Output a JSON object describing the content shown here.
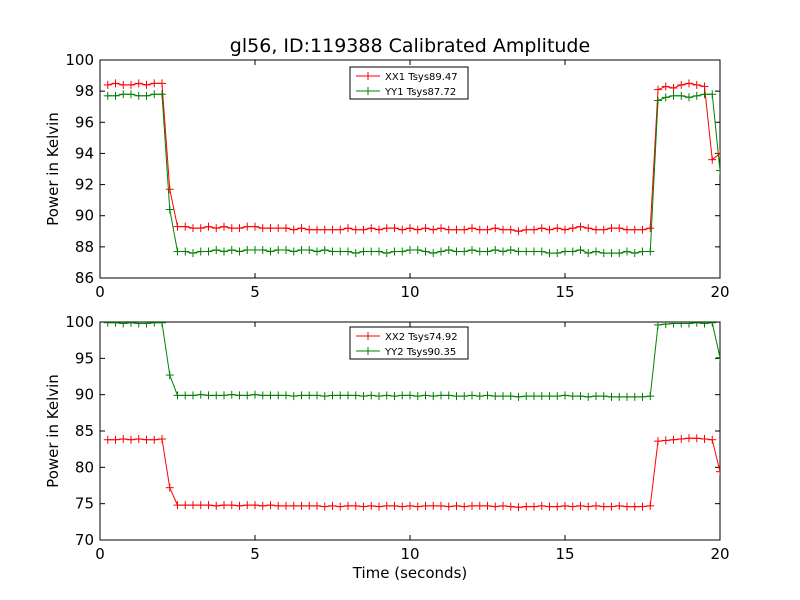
{
  "figure": {
    "title": "gl56, ID:119388 Calibrated Amplitude",
    "xlabel": "Time (seconds)"
  },
  "chart_data": [
    {
      "type": "line",
      "title": "gl56, ID:119388 Calibrated Amplitude",
      "xlabel": "",
      "ylabel": "Power in Kelvin",
      "xlim": [
        0,
        20
      ],
      "ylim": [
        86,
        100
      ],
      "xticks": [
        "0",
        "5",
        "10",
        "15",
        "20"
      ],
      "yticks": [
        "86",
        "88",
        "90",
        "92",
        "94",
        "96",
        "98",
        "100"
      ],
      "legend_position": "top-center",
      "grid": false,
      "x": [
        0.25,
        0.5,
        0.75,
        1.0,
        1.25,
        1.5,
        1.75,
        2.0,
        2.25,
        2.5,
        2.75,
        3.0,
        3.25,
        3.5,
        3.75,
        4.0,
        4.25,
        4.5,
        4.75,
        5.0,
        5.25,
        5.5,
        5.75,
        6.0,
        6.25,
        6.5,
        6.75,
        7.0,
        7.25,
        7.5,
        7.75,
        8.0,
        8.25,
        8.5,
        8.75,
        9.0,
        9.25,
        9.5,
        9.75,
        10.0,
        10.25,
        10.5,
        10.75,
        11.0,
        11.25,
        11.5,
        11.75,
        12.0,
        12.25,
        12.5,
        12.75,
        13.0,
        13.25,
        13.5,
        13.75,
        14.0,
        14.25,
        14.5,
        14.75,
        15.0,
        15.25,
        15.5,
        15.75,
        16.0,
        16.25,
        16.5,
        16.75,
        17.0,
        17.25,
        17.5,
        17.75,
        18.0,
        18.25,
        18.5,
        18.75,
        19.0,
        19.25,
        19.5,
        19.75,
        20.0
      ],
      "series": [
        {
          "name": "XX1 Tsys89.47",
          "color": "#ff0000",
          "values": [
            98.4,
            98.5,
            98.4,
            98.4,
            98.5,
            98.4,
            98.5,
            98.5,
            91.7,
            89.3,
            89.3,
            89.2,
            89.2,
            89.3,
            89.2,
            89.3,
            89.2,
            89.2,
            89.3,
            89.3,
            89.2,
            89.2,
            89.2,
            89.2,
            89.1,
            89.2,
            89.1,
            89.1,
            89.1,
            89.1,
            89.1,
            89.2,
            89.1,
            89.1,
            89.2,
            89.1,
            89.2,
            89.2,
            89.1,
            89.2,
            89.1,
            89.2,
            89.1,
            89.2,
            89.1,
            89.1,
            89.1,
            89.2,
            89.1,
            89.1,
            89.2,
            89.1,
            89.1,
            89.0,
            89.1,
            89.1,
            89.2,
            89.1,
            89.2,
            89.1,
            89.2,
            89.3,
            89.2,
            89.1,
            89.1,
            89.2,
            89.2,
            89.1,
            89.1,
            89.1,
            89.2,
            98.1,
            98.3,
            98.2,
            98.4,
            98.5,
            98.4,
            98.3,
            93.6,
            94.0
          ]
        },
        {
          "name": "YY1 Tsys87.72",
          "color": "#008000",
          "values": [
            97.7,
            97.7,
            97.8,
            97.8,
            97.7,
            97.7,
            97.8,
            97.8,
            90.4,
            87.7,
            87.7,
            87.6,
            87.7,
            87.7,
            87.8,
            87.7,
            87.8,
            87.7,
            87.8,
            87.8,
            87.8,
            87.7,
            87.8,
            87.8,
            87.7,
            87.8,
            87.8,
            87.7,
            87.8,
            87.7,
            87.7,
            87.7,
            87.6,
            87.7,
            87.7,
            87.7,
            87.6,
            87.7,
            87.7,
            87.8,
            87.8,
            87.7,
            87.6,
            87.7,
            87.8,
            87.7,
            87.7,
            87.8,
            87.7,
            87.7,
            87.8,
            87.7,
            87.8,
            87.7,
            87.7,
            87.7,
            87.7,
            87.6,
            87.6,
            87.7,
            87.7,
            87.8,
            87.6,
            87.7,
            87.6,
            87.6,
            87.6,
            87.7,
            87.6,
            87.7,
            87.7,
            97.4,
            97.6,
            97.7,
            97.7,
            97.6,
            97.7,
            97.8,
            97.8,
            92.9
          ]
        }
      ]
    },
    {
      "type": "line",
      "title": "",
      "xlabel": "Time (seconds)",
      "ylabel": "Power in Kelvin",
      "xlim": [
        0,
        20
      ],
      "ylim": [
        70,
        100
      ],
      "xticks": [
        "0",
        "5",
        "10",
        "15",
        "20"
      ],
      "yticks": [
        "70",
        "75",
        "80",
        "85",
        "90",
        "95",
        "100"
      ],
      "legend_position": "top-center",
      "grid": false,
      "x": [
        0.25,
        0.5,
        0.75,
        1.0,
        1.25,
        1.5,
        1.75,
        2.0,
        2.25,
        2.5,
        2.75,
        3.0,
        3.25,
        3.5,
        3.75,
        4.0,
        4.25,
        4.5,
        4.75,
        5.0,
        5.25,
        5.5,
        5.75,
        6.0,
        6.25,
        6.5,
        6.75,
        7.0,
        7.25,
        7.5,
        7.75,
        8.0,
        8.25,
        8.5,
        8.75,
        9.0,
        9.25,
        9.5,
        9.75,
        10.0,
        10.25,
        10.5,
        10.75,
        11.0,
        11.25,
        11.5,
        11.75,
        12.0,
        12.25,
        12.5,
        12.75,
        13.0,
        13.25,
        13.5,
        13.75,
        14.0,
        14.25,
        14.5,
        14.75,
        15.0,
        15.25,
        15.5,
        15.75,
        16.0,
        16.25,
        16.5,
        16.75,
        17.0,
        17.25,
        17.5,
        17.75,
        18.0,
        18.25,
        18.5,
        18.75,
        19.0,
        19.25,
        19.5,
        19.75,
        20.0
      ],
      "series": [
        {
          "name": "XX2 Tsys74.92",
          "color": "#ff0000",
          "values": [
            83.8,
            83.8,
            83.9,
            83.8,
            83.9,
            83.8,
            83.8,
            83.9,
            77.2,
            74.8,
            74.8,
            74.8,
            74.8,
            74.8,
            74.7,
            74.8,
            74.8,
            74.7,
            74.8,
            74.8,
            74.7,
            74.8,
            74.7,
            74.7,
            74.7,
            74.7,
            74.7,
            74.7,
            74.6,
            74.7,
            74.6,
            74.7,
            74.7,
            74.6,
            74.7,
            74.6,
            74.7,
            74.7,
            74.6,
            74.7,
            74.6,
            74.7,
            74.7,
            74.7,
            74.6,
            74.7,
            74.6,
            74.7,
            74.7,
            74.7,
            74.6,
            74.7,
            74.6,
            74.5,
            74.6,
            74.6,
            74.7,
            74.6,
            74.6,
            74.7,
            74.6,
            74.7,
            74.6,
            74.7,
            74.6,
            74.6,
            74.7,
            74.6,
            74.6,
            74.6,
            74.7,
            83.6,
            83.7,
            83.8,
            83.9,
            84.0,
            84.0,
            83.9,
            83.8,
            79.4
          ]
        },
        {
          "name": "YY2 Tsys90.35",
          "color": "#008000",
          "values": [
            99.9,
            99.9,
            99.8,
            99.9,
            99.8,
            99.8,
            99.9,
            99.9,
            92.7,
            89.9,
            89.9,
            89.9,
            90.0,
            89.9,
            89.9,
            89.9,
            90.0,
            89.9,
            89.9,
            90.0,
            89.9,
            89.9,
            89.9,
            89.9,
            89.8,
            89.9,
            89.9,
            89.9,
            89.8,
            89.9,
            89.9,
            89.9,
            89.9,
            89.8,
            89.9,
            89.8,
            89.9,
            89.8,
            89.9,
            89.9,
            89.8,
            89.9,
            89.8,
            89.9,
            89.9,
            89.8,
            89.8,
            89.9,
            89.8,
            89.9,
            89.8,
            89.8,
            89.8,
            89.7,
            89.8,
            89.8,
            89.8,
            89.8,
            89.8,
            89.9,
            89.8,
            89.8,
            89.7,
            89.8,
            89.8,
            89.7,
            89.7,
            89.7,
            89.7,
            89.7,
            89.8,
            99.6,
            99.7,
            99.8,
            99.8,
            99.8,
            99.9,
            99.8,
            99.9,
            95.1
          ]
        }
      ]
    }
  ]
}
